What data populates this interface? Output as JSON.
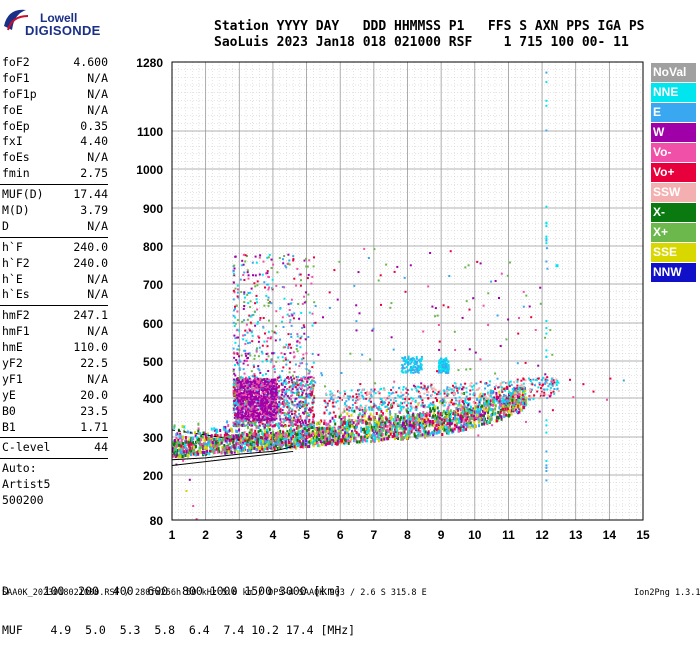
{
  "logo": {
    "line1": "Lowell",
    "line2": "DIGISONDE"
  },
  "header": {
    "labels": "Station YYYY DAY   DDD HHMMSS P1   FFS S AXN PPS IGA PS",
    "values": "SaoLuis 2023 Jan18 018 021000 RSF    1 715 100 00- 11"
  },
  "params": {
    "group1": [
      {
        "k": "foF2",
        "v": "4.600"
      },
      {
        "k": "foF1",
        "v": "N/A"
      },
      {
        "k": "foF1p",
        "v": "N/A"
      },
      {
        "k": "foE",
        "v": "N/A"
      },
      {
        "k": "foEp",
        "v": "0.35"
      },
      {
        "k": "fxI",
        "v": "4.40"
      },
      {
        "k": "foEs",
        "v": "N/A"
      },
      {
        "k": "fmin",
        "v": "2.75"
      }
    ],
    "group2": [
      {
        "k": "MUF(D)",
        "v": "17.44"
      },
      {
        "k": "M(D)",
        "v": "3.79"
      },
      {
        "k": "D",
        "v": "N/A"
      }
    ],
    "group3": [
      {
        "k": "h`F",
        "v": "240.0"
      },
      {
        "k": "h`F2",
        "v": "240.0"
      },
      {
        "k": "h`E",
        "v": "N/A"
      },
      {
        "k": "h`Es",
        "v": "N/A"
      }
    ],
    "group4": [
      {
        "k": "hmF2",
        "v": "247.1"
      },
      {
        "k": "hmF1",
        "v": "N/A"
      },
      {
        "k": "hmE",
        "v": "110.0"
      },
      {
        "k": "yF2",
        "v": "22.5"
      },
      {
        "k": "yF1",
        "v": "N/A"
      },
      {
        "k": "yE",
        "v": "20.0"
      },
      {
        "k": "B0",
        "v": "23.5"
      },
      {
        "k": "B1",
        "v": "1.71"
      }
    ],
    "group5": [
      {
        "k": "C-level",
        "v": "44"
      }
    ],
    "auto_lines": [
      "Auto:",
      "Artist5",
      "500200"
    ]
  },
  "legend": [
    {
      "label": "NoVal",
      "color": "#a0a0a0"
    },
    {
      "label": "NNE",
      "color": "#00e5ee"
    },
    {
      "label": "E",
      "color": "#3aa8f0"
    },
    {
      "label": "W",
      "color": "#a000a8"
    },
    {
      "label": "Vo-",
      "color": "#f050a8"
    },
    {
      "label": "Vo+",
      "color": "#e8003c"
    },
    {
      "label": "SSW",
      "color": "#f4b0b0"
    },
    {
      "label": "X-",
      "color": "#0a7a10"
    },
    {
      "label": "X+",
      "color": "#6cb84c"
    },
    {
      "label": "SSE",
      "color": "#d8d800"
    },
    {
      "label": "NNW",
      "color": "#1010c8"
    }
  ],
  "bottom": {
    "d_row": "D     100  200  400  600  800 1000 1500 3000 [km]",
    "muf_row": "MUF    4.9  5.0  5.3  5.8  6.4  7.4 10.2 17.4 [MHz]"
  },
  "footer": {
    "left": "SAA0K_2023018021000.RSF / 280fx256h 50 kHz 5.0 km / DPS-4 SAA0K 903 / 2.6 S 315.8 E",
    "right": "Ion2Png 1.3.17"
  },
  "chart_data": {
    "type": "scatter",
    "xlabel": "",
    "ylabel": "",
    "x_ticks": [
      1,
      2,
      3,
      4,
      5,
      6,
      7,
      8,
      9,
      10,
      11,
      12,
      13,
      14,
      15
    ],
    "y_ticks": [
      80,
      200,
      300,
      400,
      500,
      600,
      700,
      800,
      900,
      1000,
      1100,
      1280
    ],
    "xlim": [
      1,
      15
    ],
    "ylim": [
      80,
      1280
    ],
    "y_scale": "nonlinear (virtual height, compressed at top)",
    "grid": true,
    "legend_placement": "right",
    "description_of_data": "ionogram echo traces (virtual height km vs frequency MHz), colored by echo direction",
    "clusters": [
      {
        "name": "F2 O/X trace",
        "freq_range": [
          1.0,
          11.5
        ],
        "height_range": [
          250,
          420
        ],
        "colors": [
          "#e8003c",
          "#f050a8",
          "#6cb84c",
          "#3aa8f0",
          "#a000a8",
          "#d8d800",
          "#0a7a10",
          "#00e5ee"
        ]
      },
      {
        "name": "multiple reflections",
        "freq_range": [
          2.8,
          5.2
        ],
        "height_range": [
          330,
          780
        ],
        "colors": [
          "#a000a8",
          "#f050a8",
          "#00e5ee",
          "#3aa8f0",
          "#6cb84c",
          "#e8003c"
        ]
      },
      {
        "name": "spread echoes",
        "freq_range": [
          5.5,
          12.5
        ],
        "height_range": [
          340,
          520
        ],
        "colors": [
          "#3aa8f0",
          "#00e5ee",
          "#f4b0b0",
          "#e8003c"
        ]
      },
      {
        "name": "noise column",
        "freq_range": [
          12.1,
          12.15
        ],
        "height_range": [
          160,
          1280
        ],
        "colors": [
          "#3aa8f0",
          "#00e5ee"
        ]
      }
    ],
    "traces": [
      {
        "name": "O-trace model",
        "points": [
          [
            1.0,
            240
          ],
          [
            2.0,
            245
          ],
          [
            3.0,
            255
          ],
          [
            4.0,
            262
          ],
          [
            4.6,
            275
          ]
        ]
      }
    ]
  }
}
